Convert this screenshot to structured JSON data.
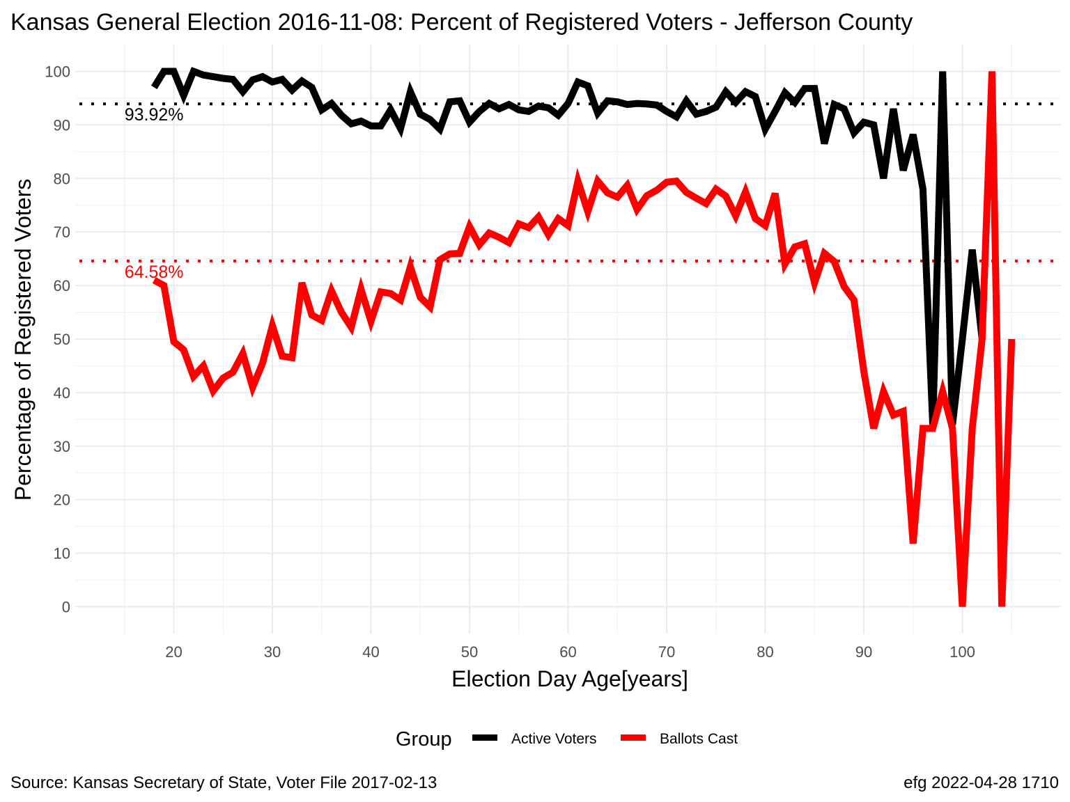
{
  "chart_data": {
    "type": "line",
    "title": "Kansas General Election 2016-11-08:  Percent of Registered Voters - Jefferson County",
    "xlabel": "Election Day Age[years]",
    "ylabel": "Percentage of Registered Voters",
    "xlim": [
      10,
      110
    ],
    "ylim": [
      -5,
      105
    ],
    "x_ticks": [
      20,
      30,
      40,
      50,
      60,
      70,
      80,
      90,
      100
    ],
    "y_ticks": [
      0,
      10,
      20,
      30,
      40,
      50,
      60,
      70,
      80,
      90,
      100
    ],
    "grid": true,
    "legend": {
      "title": "Group",
      "position": "bottom",
      "entries": [
        {
          "label": "Active Voters",
          "color": "#000000"
        },
        {
          "label": "Ballots Cast",
          "color": "#ff0000"
        }
      ]
    },
    "reference_lines": [
      {
        "value": 93.92,
        "label": "93.92%",
        "color": "#000000"
      },
      {
        "value": 64.58,
        "label": "64.58%",
        "color": "#ff0000"
      }
    ],
    "series": [
      {
        "name": "Active Voters",
        "color": "#000000",
        "x": [
          18,
          19,
          20,
          21,
          22,
          23,
          24,
          25,
          26,
          27,
          28,
          29,
          30,
          31,
          32,
          33,
          34,
          35,
          36,
          37,
          38,
          39,
          40,
          41,
          42,
          43,
          44,
          45,
          46,
          47,
          48,
          49,
          50,
          51,
          52,
          53,
          54,
          55,
          56,
          57,
          58,
          59,
          60,
          61,
          62,
          63,
          64,
          65,
          66,
          67,
          68,
          69,
          70,
          71,
          72,
          73,
          74,
          75,
          76,
          77,
          78,
          79,
          80,
          81,
          82,
          83,
          84,
          85,
          86,
          87,
          88,
          89,
          90,
          91,
          92,
          93,
          94,
          95,
          96,
          97,
          98,
          99,
          100,
          101,
          102
        ],
        "values": [
          97,
          100,
          100,
          95.5,
          100,
          99.3,
          99,
          98.7,
          98.5,
          96.2,
          98.4,
          99,
          98,
          98.5,
          96.5,
          98.2,
          97,
          92.8,
          94,
          91.8,
          90.2,
          90.7,
          89.8,
          89.8,
          92.8,
          89.3,
          96.2,
          92,
          91,
          89.2,
          94.3,
          94.5,
          90.5,
          92.5,
          94,
          93,
          93.8,
          92.8,
          92.5,
          93.5,
          93.2,
          91.8,
          94,
          98,
          97.3,
          92.2,
          94.5,
          94.3,
          93.8,
          94,
          93.9,
          93.7,
          92.5,
          91.5,
          94.5,
          92,
          92.5,
          93.3,
          96.2,
          94.2,
          96.2,
          95.3,
          89.2,
          92.5,
          96,
          94.2,
          96.8,
          96.8,
          86.5,
          93.8,
          93,
          88.5,
          90.5,
          90,
          80,
          93,
          81.5,
          88.2,
          78,
          34,
          100,
          34,
          50,
          66.7,
          50
        ]
      },
      {
        "name": "Ballots Cast",
        "color": "#ff0000",
        "x": [
          18,
          19,
          20,
          21,
          22,
          23,
          24,
          25,
          26,
          27,
          28,
          29,
          30,
          31,
          32,
          33,
          34,
          35,
          36,
          37,
          38,
          39,
          40,
          41,
          42,
          43,
          44,
          45,
          46,
          47,
          48,
          49,
          50,
          51,
          52,
          53,
          54,
          55,
          56,
          57,
          58,
          59,
          60,
          61,
          62,
          63,
          64,
          65,
          66,
          67,
          68,
          69,
          70,
          71,
          72,
          73,
          74,
          75,
          76,
          77,
          78,
          79,
          80,
          81,
          82,
          83,
          84,
          85,
          86,
          87,
          88,
          89,
          90,
          91,
          92,
          93,
          94,
          95,
          96,
          97,
          98,
          99,
          100,
          101,
          102,
          103,
          104,
          105
        ],
        "values": [
          61,
          60,
          49.5,
          48,
          43,
          45,
          40.3,
          42.7,
          43.8,
          47.3,
          41,
          45.5,
          52.5,
          46.8,
          46.5,
          60.5,
          54.5,
          53.5,
          59,
          55,
          52.2,
          59.3,
          53.3,
          58.8,
          58.5,
          57.3,
          63.5,
          57.8,
          56,
          64.8,
          65.9,
          66,
          71,
          67.6,
          69.8,
          69,
          68,
          71.5,
          70.8,
          72.8,
          69.5,
          72.5,
          71.2,
          79.5,
          73.8,
          79.5,
          77.3,
          76.5,
          78.7,
          74.2,
          76.8,
          77.8,
          79.3,
          79.5,
          77.4,
          76.3,
          75.3,
          78,
          76.7,
          73,
          77.5,
          72.5,
          71.2,
          77.2,
          64,
          67.2,
          67.8,
          60.5,
          66,
          64.5,
          59.8,
          57.3,
          44,
          33.3,
          40.2,
          35.8,
          36.5,
          11.8,
          33.3,
          33.3,
          40.2,
          33.3,
          0,
          33.3,
          50,
          100,
          0,
          50
        ]
      }
    ]
  },
  "footer": {
    "source": "Source:  Kansas Secretary of State, Voter File  2017-02-13",
    "credit": "efg 2022-04-28 1710"
  }
}
